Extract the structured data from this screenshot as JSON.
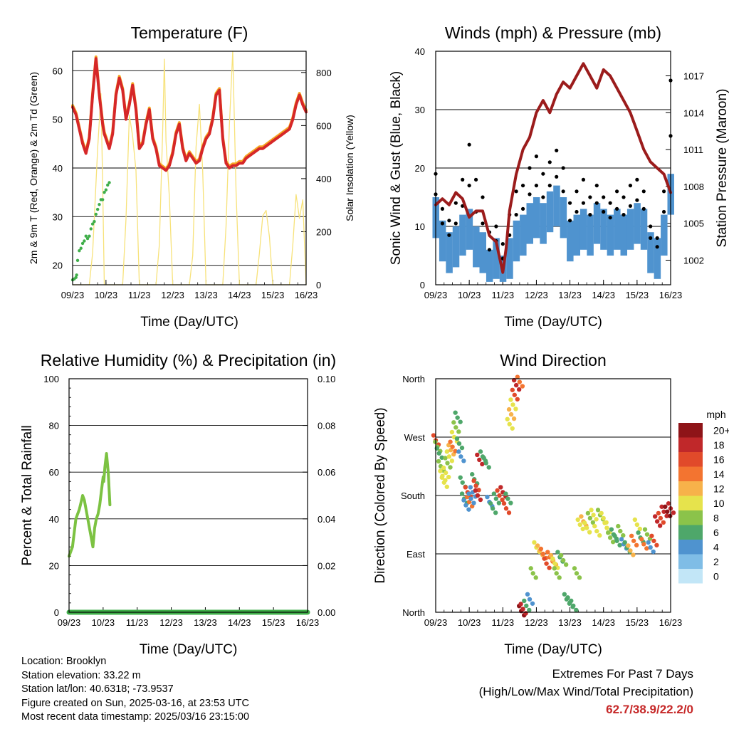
{
  "chart_data": [
    {
      "type": "line",
      "title": "Temperature (F)",
      "xlabel": "Time (Day/UTC)",
      "ylabel": "2m & 9m T (Red, Orange) & 2m Td (Green)",
      "ylabel_right": "Solar Insolation (Yellow)",
      "x_ticks": [
        "09/23",
        "10/23",
        "11/23",
        "12/23",
        "13/23",
        "14/23",
        "15/23",
        "16/23"
      ],
      "xlim": [
        0,
        7
      ],
      "ylim": [
        16,
        64
      ],
      "y_ticks": [
        20,
        30,
        40,
        50,
        60
      ],
      "y2lim": [
        0,
        880
      ],
      "y2_ticks": [
        0,
        200,
        400,
        600,
        800
      ],
      "grid": "horizontal",
      "colors": {
        "temp_2m": "#d62728",
        "temp_9m": "#f5a623",
        "dewpoint": "#3fae49",
        "solar": "#f7e27a"
      },
      "series": [
        {
          "key": "temp_2m",
          "axis": "left",
          "x": [
            0,
            0.1,
            0.2,
            0.3,
            0.4,
            0.5,
            0.6,
            0.7,
            0.8,
            0.9,
            0.95,
            1.0,
            1.1,
            1.2,
            1.3,
            1.4,
            1.5,
            1.6,
            1.7,
            1.8,
            1.9,
            2.0,
            2.1,
            2.2,
            2.3,
            2.4,
            2.5,
            2.6,
            2.7,
            2.8,
            2.9,
            3.0,
            3.1,
            3.2,
            3.3,
            3.4,
            3.5,
            3.6,
            3.7,
            3.8,
            3.9,
            4.0,
            4.1,
            4.2,
            4.3,
            4.4,
            4.5,
            4.6,
            4.7,
            4.8,
            4.9,
            5.0,
            5.1,
            5.2,
            5.3,
            5.4,
            5.5,
            5.6,
            5.7,
            5.8,
            5.9,
            6.0,
            6.1,
            6.2,
            6.3,
            6.4,
            6.5,
            6.6,
            6.7,
            6.8,
            6.9,
            7.0
          ],
          "y": [
            52.5,
            51,
            48,
            45,
            43,
            46,
            55,
            62.5,
            55,
            49,
            47,
            46,
            44,
            47,
            55,
            58.5,
            56,
            50,
            53,
            57,
            52,
            44,
            45,
            49,
            52,
            46,
            44,
            40.5,
            40,
            39.5,
            40.5,
            43,
            47,
            49,
            44,
            41.5,
            43,
            42,
            41,
            41.5,
            44,
            46,
            47,
            50,
            55,
            56,
            46,
            41,
            40,
            40.5,
            40.5,
            41,
            41,
            42,
            42.5,
            43,
            43.5,
            44,
            44,
            44.5,
            45,
            45.5,
            46,
            46.5,
            47,
            47.5,
            48,
            50,
            53,
            55,
            53,
            51.5
          ]
        },
        {
          "key": "solar",
          "axis": "right",
          "x": [
            0,
            0.5,
            0.6,
            0.75,
            0.85,
            0.9,
            0.95,
            1.5,
            1.6,
            1.7,
            1.8,
            1.9,
            2.0,
            2.5,
            2.6,
            2.7,
            2.75,
            2.8,
            2.9,
            3.0,
            3.5,
            3.6,
            3.7,
            3.75,
            3.8,
            3.9,
            4.0,
            4.5,
            4.6,
            4.7,
            4.8,
            4.9,
            5.0,
            5.5,
            5.6,
            5.7,
            5.8,
            5.9,
            6.0,
            6.5,
            6.6,
            6.7,
            6.8,
            6.9,
            7.0
          ],
          "y": [
            0,
            0,
            120,
            510,
            720,
            380,
            0,
            0,
            250,
            640,
            560,
            430,
            0,
            0,
            150,
            580,
            850,
            540,
            330,
            0,
            0,
            110,
            520,
            600,
            680,
            430,
            0,
            0,
            220,
            600,
            880,
            350,
            0,
            0,
            120,
            260,
            280,
            180,
            0,
            0,
            150,
            340,
            250,
            320,
            0
          ]
        },
        {
          "key": "dewpoint",
          "axis": "left",
          "x": [
            0,
            0.05,
            0.1,
            0.12,
            0.15,
            0.2,
            0.25,
            0.3,
            0.35,
            0.4,
            0.45,
            0.5,
            0.55,
            0.6,
            0.65,
            0.7,
            0.75,
            0.8,
            0.85,
            0.9,
            0.95,
            1.0,
            1.05,
            1.1
          ],
          "y": [
            17,
            17.2,
            17.5,
            18,
            21,
            23,
            23.5,
            24.5,
            25,
            26,
            25.5,
            26,
            27.5,
            28.5,
            29,
            30.5,
            31.5,
            32.5,
            33.5,
            33.5,
            35,
            35.5,
            36.5,
            37
          ]
        }
      ]
    },
    {
      "type": "scatter",
      "title": "Winds (mph) & Pressure (mb)",
      "xlabel": "Time (Day/UTC)",
      "ylabel": "Sonic Wind & Gust (Blue, Black)",
      "ylabel_right": "Station Pressure (Maroon)",
      "x_ticks": [
        "09/23",
        "10/23",
        "11/23",
        "12/23",
        "13/23",
        "14/23",
        "15/23",
        "16/23"
      ],
      "xlim": [
        0,
        7
      ],
      "ylim": [
        0,
        40
      ],
      "y_ticks": [
        0,
        10,
        20,
        30,
        40
      ],
      "y2lim": [
        1000,
        1019
      ],
      "y2_ticks": [
        1002,
        1005,
        1008,
        1011,
        1014,
        1017
      ],
      "grid": "horizontal",
      "colors": {
        "wind": "#4f93cf",
        "gust": "#000000",
        "pressure": "#9b1c1c"
      },
      "wind": {
        "x": [
          0,
          0.2,
          0.4,
          0.6,
          0.8,
          1.0,
          1.2,
          1.4,
          1.6,
          1.8,
          2.0,
          2.2,
          2.4,
          2.6,
          2.8,
          3.0,
          3.2,
          3.4,
          3.6,
          3.8,
          4.0,
          4.2,
          4.4,
          4.6,
          4.8,
          5.0,
          5.2,
          5.4,
          5.6,
          5.8,
          6.0,
          6.2,
          6.4,
          6.6,
          6.8,
          7.0
        ],
        "y": [
          12,
          8,
          6,
          7,
          9,
          10,
          7,
          6,
          3,
          5,
          2,
          5,
          8,
          9,
          11,
          12,
          11,
          13,
          14,
          12,
          8,
          9,
          10,
          9,
          11,
          10,
          9,
          10,
          9,
          10,
          11,
          10,
          6,
          5,
          9,
          16
        ]
      },
      "gust": {
        "x": [
          0,
          0.2,
          0.4,
          0.6,
          0.8,
          1.0,
          1.2,
          1.4,
          1.6,
          1.8,
          2.0,
          2.2,
          2.4,
          2.6,
          2.8,
          3.0,
          3.2,
          3.4,
          3.6,
          3.8,
          4.0,
          4.2,
          4.4,
          4.6,
          4.8,
          5.0,
          5.2,
          5.4,
          5.6,
          5.8,
          6.0,
          6.2,
          6.4,
          6.6,
          6.8,
          7.0
        ],
        "y": [
          19,
          13,
          11,
          14,
          18,
          24,
          18,
          15,
          9,
          10,
          7,
          12,
          16,
          17,
          20,
          22,
          19,
          21,
          23,
          20,
          14,
          16,
          18,
          15,
          17,
          15,
          14,
          16,
          15,
          17,
          18,
          16,
          10,
          8,
          16,
          35
        ]
      },
      "pressure": {
        "x": [
          0,
          0.2,
          0.4,
          0.6,
          0.8,
          1.0,
          1.2,
          1.4,
          1.6,
          1.8,
          2.0,
          2.1,
          2.2,
          2.4,
          2.6,
          2.8,
          3.0,
          3.2,
          3.4,
          3.6,
          3.8,
          4.0,
          4.2,
          4.4,
          4.6,
          4.8,
          5.0,
          5.2,
          5.4,
          5.6,
          5.8,
          6.0,
          6.2,
          6.4,
          6.6,
          6.8,
          7.0
        ],
        "y": [
          1006.5,
          1007,
          1006.5,
          1007.5,
          1007,
          1005.5,
          1006,
          1006,
          1004,
          1003.5,
          1001,
          1003,
          1006,
          1009,
          1011,
          1012,
          1014,
          1015,
          1014,
          1015.5,
          1016.5,
          1016,
          1017,
          1018,
          1017,
          1016,
          1017.5,
          1017,
          1016,
          1015,
          1014,
          1012.5,
          1011,
          1010,
          1009.5,
          1009,
          1007.5
        ]
      }
    },
    {
      "type": "line",
      "title": "Relative Humidity (%) & Precipitation (in)",
      "xlabel": "Time (Day/UTC)",
      "ylabel": "Percent & Total Rainfall",
      "x_ticks": [
        "09/23",
        "10/23",
        "11/23",
        "12/23",
        "13/23",
        "14/23",
        "15/23",
        "16/23"
      ],
      "xlim": [
        0,
        7
      ],
      "ylim": [
        0,
        100
      ],
      "y_ticks": [
        0,
        20,
        40,
        60,
        80,
        100
      ],
      "y2lim": [
        0,
        0.1
      ],
      "y2_ticks": [
        "0.00",
        "0.02",
        "0.04",
        "0.06",
        "0.08",
        "0.10"
      ],
      "grid": "horizontal",
      "colors": {
        "rh": "#7cc242",
        "precip": "#3fae49"
      },
      "series": [
        {
          "key": "rh",
          "axis": "left",
          "x": [
            0,
            0.05,
            0.1,
            0.15,
            0.2,
            0.25,
            0.3,
            0.35,
            0.4,
            0.45,
            0.5,
            0.55,
            0.6,
            0.65,
            0.7,
            0.75,
            0.8,
            0.85,
            0.9,
            0.95,
            1.0,
            1.02,
            1.05,
            1.1,
            1.15,
            1.2
          ],
          "y": [
            24,
            26,
            28,
            34,
            40,
            42,
            44,
            47,
            50,
            48,
            44,
            40,
            36,
            32,
            28,
            36,
            40,
            42,
            46,
            52,
            58,
            56,
            62,
            68,
            60,
            46
          ]
        },
        {
          "key": "precip",
          "axis": "right",
          "x": [
            0,
            7
          ],
          "y": [
            0,
            0
          ]
        }
      ]
    },
    {
      "type": "scatter",
      "title": "Wind Direction",
      "xlabel": "Time (Day/UTC)",
      "ylabel": "Direction (Colored By Speed)",
      "x_ticks": [
        "09/23",
        "10/23",
        "11/23",
        "12/23",
        "13/23",
        "14/23",
        "15/23",
        "16/23"
      ],
      "xlim": [
        0,
        7
      ],
      "ylim": [
        0,
        360
      ],
      "y_ticks": [
        "North",
        "East",
        "South",
        "West",
        "North"
      ],
      "grid": "horizontal",
      "colorbar": {
        "title": "mph",
        "labels": [
          "0",
          "2",
          "4",
          "6",
          "8",
          "10",
          "12",
          "14",
          "16",
          "18",
          "20+"
        ],
        "colors": [
          "#c2e6f7",
          "#7fbde6",
          "#4f93cf",
          "#4ea76a",
          "#8bc34a",
          "#e6e34c",
          "#f7b24a",
          "#f37430",
          "#e14a2a",
          "#c0282a",
          "#8e1418"
        ]
      },
      "points": {
        "x": [
          0,
          0.05,
          0.1,
          0.15,
          0.2,
          0.25,
          0.3,
          0.35,
          0.4,
          0.45,
          0.5,
          0.55,
          0.6,
          0.65,
          0.7,
          0.75,
          0.8,
          0.85,
          0.9,
          0.95,
          1.0,
          1.05,
          1.1,
          1.15,
          1.2,
          1.25,
          1.3,
          1.4,
          1.5,
          1.6,
          1.7,
          1.8,
          1.9,
          2.0,
          2.1,
          2.15,
          2.2,
          2.25,
          2.3,
          2.35,
          2.4,
          2.5,
          2.55,
          2.6,
          2.7,
          2.8,
          2.9,
          3.0,
          3.1,
          3.2,
          3.3,
          3.4,
          3.5,
          3.55,
          3.6,
          3.7,
          3.8,
          3.9,
          4.0,
          4.1,
          4.2,
          4.3,
          4.4,
          4.5,
          4.6,
          4.7,
          4.8,
          4.9,
          5.0,
          5.1,
          5.2,
          5.3,
          5.4,
          5.5,
          5.6,
          5.7,
          5.8,
          5.9,
          6.0,
          6.1,
          6.2,
          6.3,
          6.4,
          6.5,
          6.6,
          6.7,
          6.8,
          6.9,
          7.0
        ],
        "y": [
          265,
          255,
          245,
          225,
          210,
          200,
          215,
          230,
          240,
          250,
          255,
          270,
          285,
          300,
          260,
          240,
          200,
          175,
          165,
          185,
          170,
          175,
          185,
          205,
          195,
          180,
          235,
          240,
          230,
          170,
          160,
          175,
          180,
          185,
          160,
          175,
          290,
          305,
          320,
          335,
          350,
          355,
          2,
          5,
          10,
          20,
          60,
          100,
          95,
          90,
          75,
          85,
          80,
          75,
          60,
          85,
          80,
          20,
          15,
          10,
          60,
          135,
          140,
          130,
          145,
          150,
          125,
          150,
          145,
          130,
          115,
          120,
          110,
          125,
          105,
          100,
          95,
          110,
          135,
          115,
          105,
          120,
          100,
          110,
          140,
          145,
          155,
          155,
          160
        ],
        "speed": [
          16,
          8,
          6,
          7,
          9,
          10,
          9,
          8,
          10,
          12,
          14,
          10,
          8,
          6,
          6,
          4,
          5,
          5,
          4,
          16,
          13,
          4,
          3,
          6,
          16,
          17,
          17,
          5,
          6,
          4,
          5,
          5,
          16,
          17,
          16,
          6,
          10,
          12,
          10,
          16,
          18,
          14,
          20,
          18,
          6,
          4,
          8,
          10,
          11,
          13,
          16,
          14,
          12,
          10,
          8,
          6,
          8,
          6,
          6,
          5,
          7,
          9,
          11,
          9,
          8,
          9,
          10,
          8,
          9,
          10,
          8,
          6,
          5,
          7,
          4,
          6,
          12,
          14,
          10,
          6,
          14,
          8,
          4,
          16,
          18,
          16,
          18,
          20,
          17
        ]
      }
    }
  ],
  "info": {
    "location": "Location: Brooklyn",
    "elevation": "Station elevation: 33.22 m",
    "latlon": "Station lat/lon: 40.6318; -73.9537",
    "created": "Figure created on Sun, 2025-03-16, at 23:53 UTC",
    "timestamp": "Most recent data timestamp: 2025/03/16 23:15:00"
  },
  "extremes": {
    "line1": "Extremes For Past 7 Days",
    "line2": "(High/Low/Max Wind/Total Precipitation)",
    "values": "62.7/38.9/22.2/0"
  }
}
